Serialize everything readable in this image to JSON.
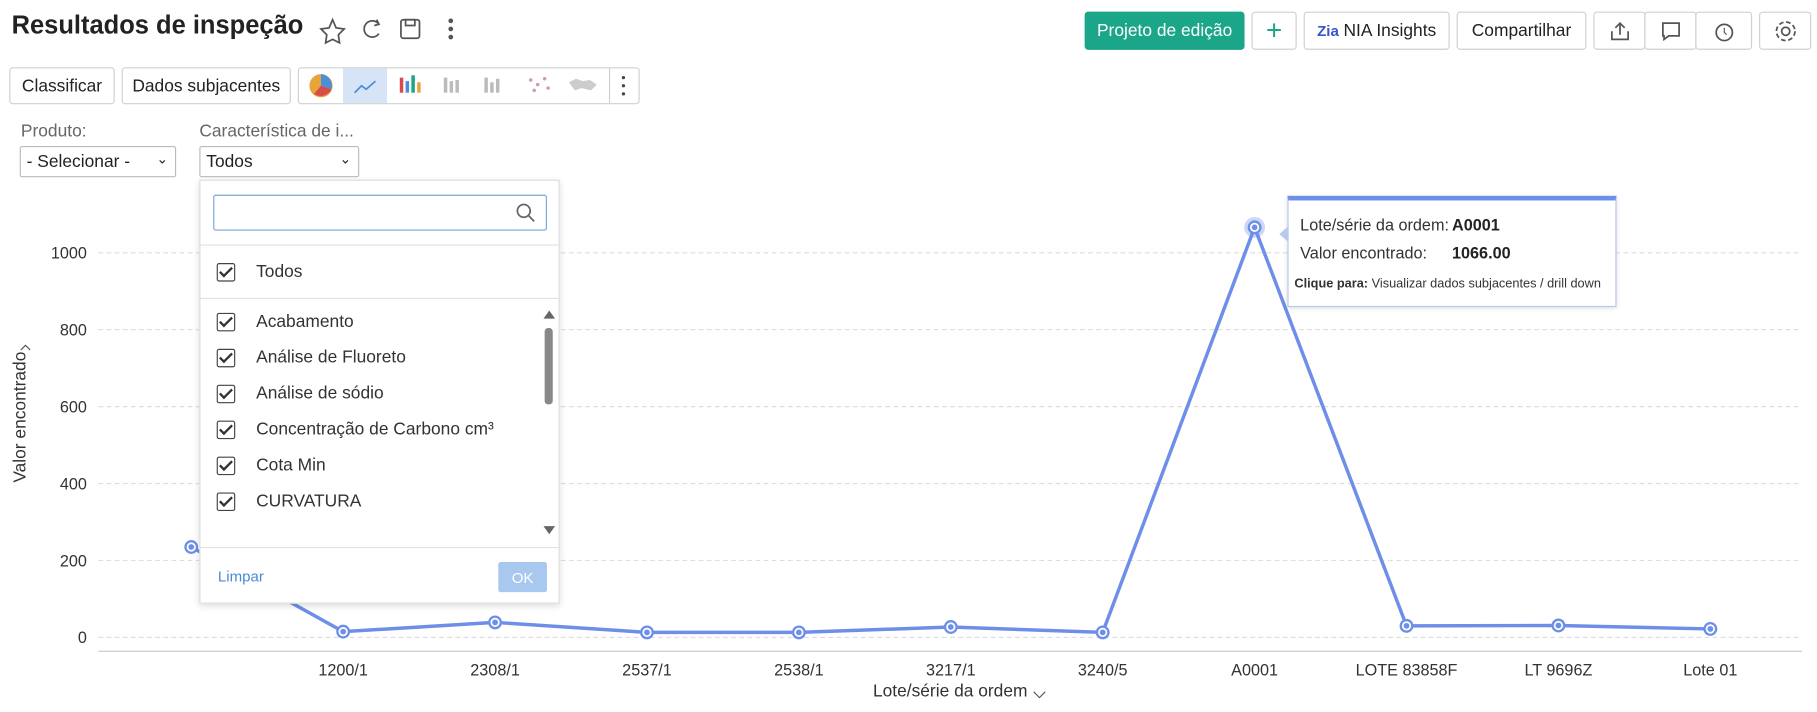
{
  "header": {
    "title": "Resultados de inspeção",
    "buttons": [
      "Projeto de edição",
      "NIA Insights",
      "Compartilhar"
    ]
  },
  "toolbar": {
    "buttons": [
      "Classificar",
      "Dados subjacentes"
    ]
  },
  "filters": [
    {
      "label": "Produto:",
      "value": "- Selecionar -"
    },
    {
      "label": "Característica de i...",
      "value": "Todos"
    }
  ],
  "dropdown": {
    "all": "Todos",
    "items": [
      "Acabamento",
      "Análise de Fluoreto",
      "Análise de sódio",
      "Concentração de Carbono cm³",
      "Cota Min",
      "CURVATURA"
    ],
    "clear": "Limpar",
    "ok": "OK"
  },
  "tooltip": {
    "x_label": "Lote/série da ordem:",
    "x_value": "A0001",
    "y_label": "Valor encontrado:",
    "y_value": "1066.00",
    "hint_label": "Clique para:",
    "hint": "Visualizar dados subjacentes / drill down"
  },
  "chart_data": {
    "type": "line",
    "x_label": "Lote/série da ordem",
    "y_label": "Valor encontrado",
    "categories": [
      null,
      "1200/1",
      "2308/1",
      "2537/1",
      "2538/1",
      "3217/1",
      "3240/5",
      "A0001",
      "LOTE 83858F",
      "LT 9696Z",
      "Lote 01"
    ],
    "values": [
      235,
      15,
      39,
      13,
      13,
      27,
      13,
      1066,
      30,
      31,
      22
    ],
    "color": "#6e8fe8",
    "ylim": [
      -36,
      1145
    ],
    "yticks": [
      0,
      200,
      400,
      600,
      800,
      1000
    ],
    "grid": true,
    "highlight": 7
  }
}
